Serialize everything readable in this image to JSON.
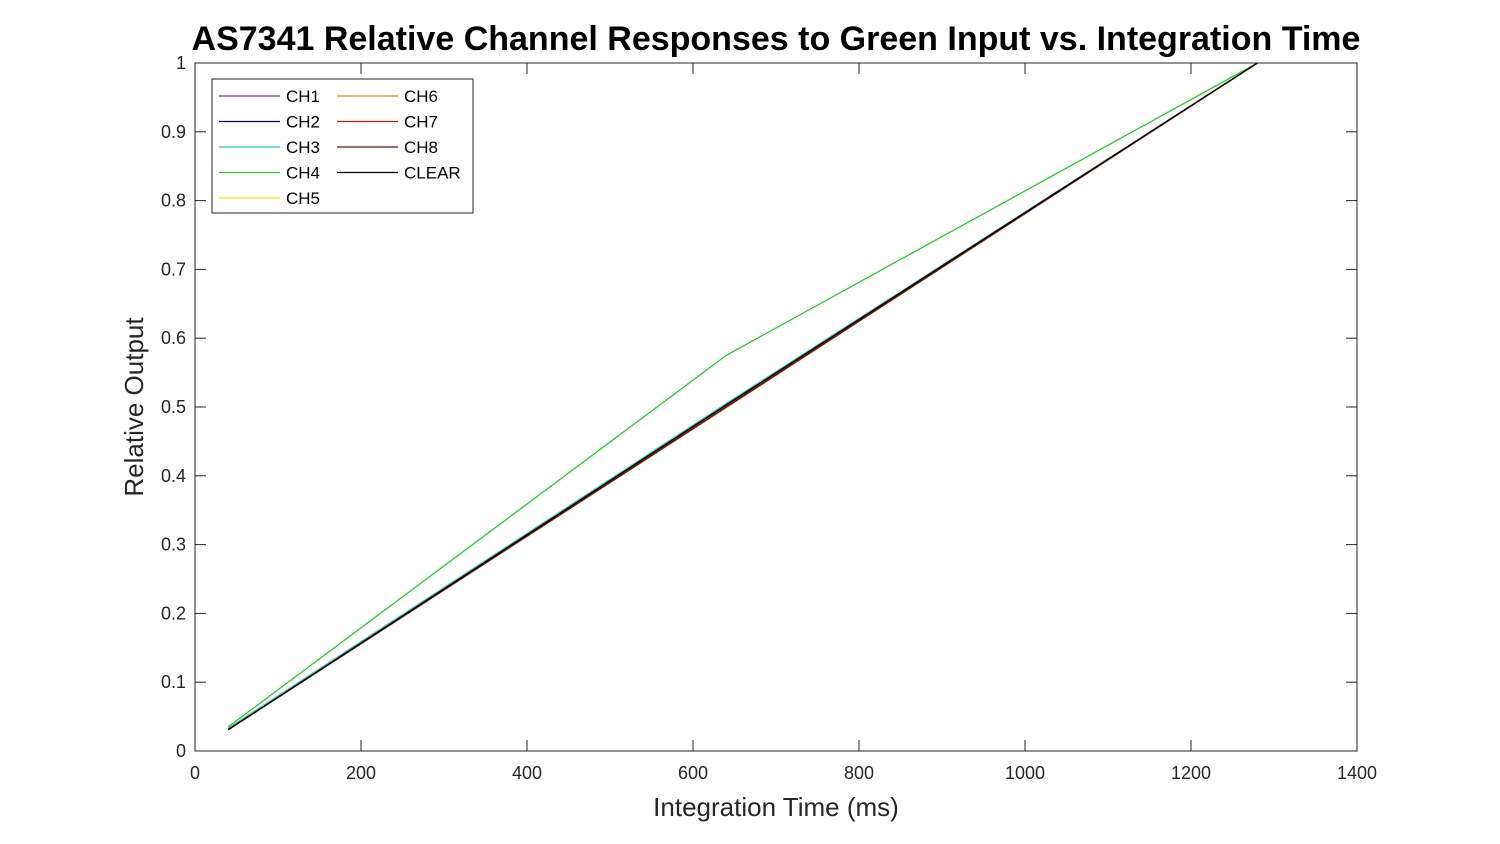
{
  "chart_data": {
    "type": "line",
    "title": "AS7341 Relative Channel Responses to Green Input vs. Integration Time",
    "xlabel": "Integration Time (ms)",
    "ylabel": "Relative Output",
    "xlim": [
      0,
      1400
    ],
    "ylim": [
      0,
      1
    ],
    "xticks": [
      0,
      200,
      400,
      600,
      800,
      1000,
      1200,
      1400
    ],
    "xtick_labels": [
      "0",
      "200",
      "400",
      "600",
      "800",
      "1000",
      "1200",
      "1400"
    ],
    "yticks": [
      0,
      0.1,
      0.2,
      0.3,
      0.4,
      0.5,
      0.6,
      0.7,
      0.8,
      0.9,
      1
    ],
    "ytick_labels": [
      "0",
      "0.1",
      "0.2",
      "0.3",
      "0.4",
      "0.5",
      "0.6",
      "0.7",
      "0.8",
      "0.9",
      "1"
    ],
    "grid": false,
    "legend_position": "top-left",
    "legend_columns": 2,
    "x": [
      40,
      640,
      1280
    ],
    "series": [
      {
        "name": "CH1",
        "color": "#7e2f8e",
        "values": [
          0.032,
          0.502,
          1.0
        ]
      },
      {
        "name": "CH2",
        "color": "#00007f",
        "values": [
          0.032,
          0.503,
          1.0
        ]
      },
      {
        "name": "CH3",
        "color": "#2ec9b7",
        "values": [
          0.033,
          0.505,
          1.0
        ]
      },
      {
        "name": "CH4",
        "color": "#22d122",
        "values": [
          0.035,
          0.575,
          1.0
        ]
      },
      {
        "name": "CH5",
        "color": "#f5e20a",
        "values": [
          0.031,
          0.5,
          1.0
        ]
      },
      {
        "name": "CH6",
        "color": "#d98f10",
        "values": [
          0.031,
          0.499,
          1.0
        ]
      },
      {
        "name": "CH7",
        "color": "#c41a1a",
        "values": [
          0.031,
          0.5,
          1.0
        ]
      },
      {
        "name": "CH8",
        "color": "#6e0e0e",
        "values": [
          0.031,
          0.5,
          1.0
        ]
      },
      {
        "name": "CLEAR",
        "color": "#000000",
        "values": [
          0.031,
          0.503,
          1.0
        ]
      }
    ]
  }
}
